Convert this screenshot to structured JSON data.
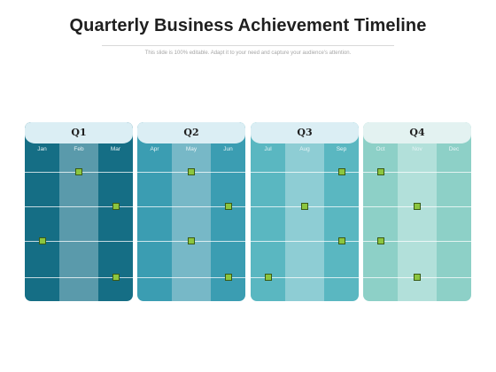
{
  "title": "Quarterly Business Achievement Timeline",
  "subtitle": "This slide is 100% editable. Adapt it to your need and capture your audience's attention.",
  "colors": {
    "marker": "#8cc63f",
    "marker_border": "#3a5a16"
  },
  "quarters": [
    {
      "label": "Q1",
      "header_color": "#dbeef4",
      "colors": [
        "#156e85",
        "#5a9aab",
        "#156e85"
      ],
      "months": [
        {
          "label": "Jan",
          "levels": [
            3
          ]
        },
        {
          "label": "Feb",
          "levels": [
            1
          ]
        },
        {
          "label": "Mar",
          "levels": [
            2,
            4
          ]
        }
      ]
    },
    {
      "label": "Q2",
      "header_color": "#dbeef4",
      "colors": [
        "#3b9db2",
        "#77b8c7",
        "#3b9db2"
      ],
      "months": [
        {
          "label": "Apr",
          "levels": []
        },
        {
          "label": "May",
          "levels": [
            1,
            3
          ]
        },
        {
          "label": "Jun",
          "levels": [
            2,
            4
          ]
        }
      ]
    },
    {
      "label": "Q3",
      "header_color": "#dbeef4",
      "colors": [
        "#5ab7c1",
        "#8ecdd4",
        "#5ab7c1"
      ],
      "months": [
        {
          "label": "Jul",
          "levels": [
            4
          ]
        },
        {
          "label": "Aug",
          "levels": [
            2
          ]
        },
        {
          "label": "Sep",
          "levels": [
            1,
            3
          ]
        }
      ]
    },
    {
      "label": "Q4",
      "header_color": "#e3f2f1",
      "colors": [
        "#8dd0c7",
        "#b2e0da",
        "#8dd0c7"
      ],
      "months": [
        {
          "label": "Oct",
          "levels": [
            1,
            3
          ]
        },
        {
          "label": "Nov",
          "levels": [
            2,
            4
          ]
        },
        {
          "label": "Dec",
          "levels": []
        }
      ]
    }
  ]
}
